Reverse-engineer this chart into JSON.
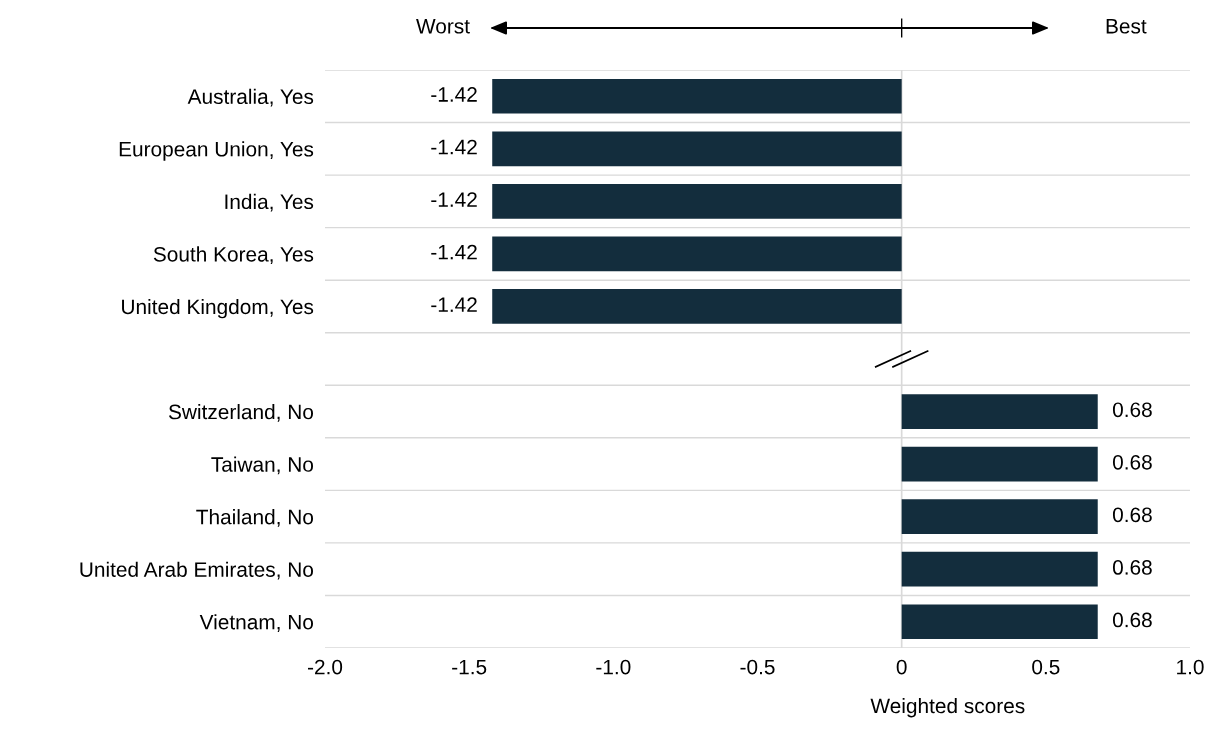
{
  "chart_data": {
    "type": "bar",
    "orientation": "horizontal",
    "categories": [
      "Australia, Yes",
      "European Union, Yes",
      "India, Yes",
      "South Korea, Yes",
      "United Kingdom, Yes",
      null,
      "Switzerland, No",
      "Taiwan, No",
      "Thailand, No",
      "United Arab Emirates, No",
      "Vietnam, No"
    ],
    "values": [
      -1.42,
      -1.42,
      -1.42,
      -1.42,
      -1.42,
      null,
      0.68,
      0.68,
      0.68,
      0.68,
      0.68
    ],
    "color": "#132d3d",
    "data_labels": true,
    "xlabel": "Weighted scores",
    "xlim": [
      -2.0,
      1.0
    ],
    "xticks": [
      {
        "value": -2,
        "label": "-2.0"
      },
      {
        "value": -1.5,
        "label": "-1.5"
      },
      {
        "value": -1,
        "label": "-1.0"
      },
      {
        "value": -0.5,
        "label": "-0.5"
      },
      0,
      {
        "value": 0.5,
        "label": "0.5"
      },
      {
        "value": 1,
        "label": "1.0"
      }
    ],
    "ref_lines": [
      {
        "axis": "x",
        "value": 0,
        "color": "#d9d9d9"
      }
    ],
    "grid": "y",
    "annotations": [
      "Worst",
      "Best"
    ]
  }
}
